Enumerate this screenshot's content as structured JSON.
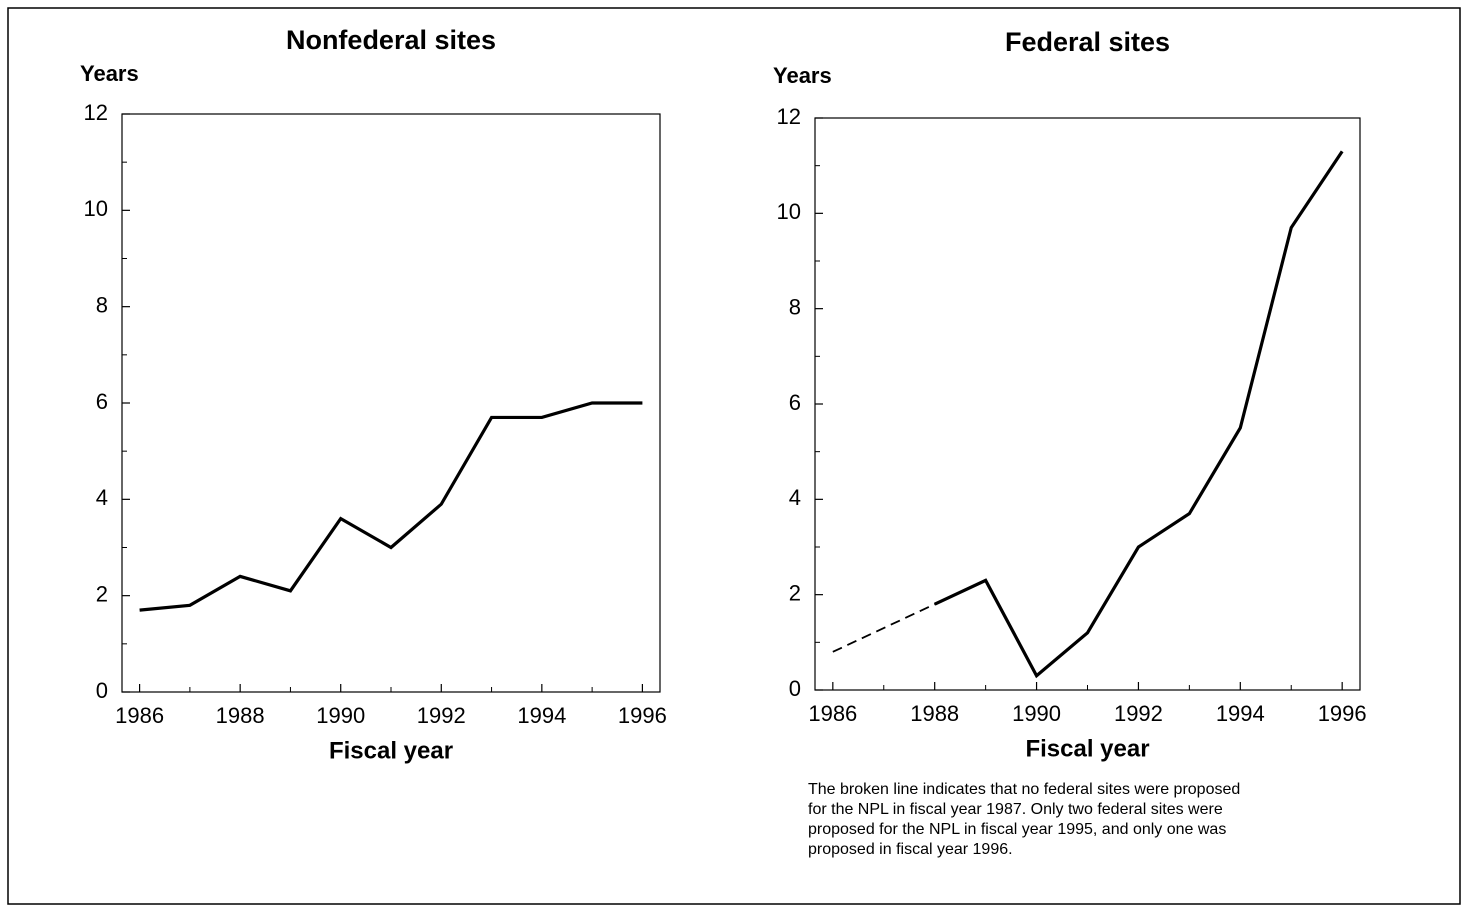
{
  "chart_data": [
    {
      "type": "line",
      "title": "Nonfederal sites",
      "y_label": "Years",
      "x_label": "Fiscal year",
      "x": [
        1986,
        1987,
        1988,
        1989,
        1990,
        1991,
        1992,
        1993,
        1994,
        1995,
        1996
      ],
      "series": [
        {
          "color": "#000000",
          "values": [
            1.7,
            1.8,
            2.4,
            2.1,
            3.6,
            3.0,
            3.9,
            5.7,
            5.7,
            6.0,
            6.0
          ]
        }
      ],
      "xlim": [
        1985.65,
        1996.35
      ],
      "xticks": [
        1986,
        1988,
        1990,
        1992,
        1994,
        1996
      ],
      "ylim": [
        0,
        12
      ],
      "yticks": [
        0,
        2,
        4,
        6,
        8,
        10,
        12
      ]
    },
    {
      "type": "line",
      "title": "Federal sites",
      "y_label": "Years",
      "x_label": "Fiscal year",
      "x": [
        1986,
        1987,
        1988,
        1989,
        1990,
        1991,
        1992,
        1993,
        1994,
        1995,
        1996
      ],
      "series": [
        {
          "color": "#000000",
          "values": [
            0.8,
            null,
            1.8,
            2.3,
            0.3,
            1.2,
            3.0,
            3.7,
            5.5,
            9.7,
            11.3
          ],
          "gap_style": "dashed"
        }
      ],
      "xlim": [
        1985.65,
        1996.35
      ],
      "xticks": [
        1986,
        1988,
        1990,
        1992,
        1994,
        1996
      ],
      "ylim": [
        0,
        12
      ],
      "yticks": [
        0,
        2,
        4,
        6,
        8,
        10,
        12
      ],
      "note": [
        "The broken line indicates that no federal sites were proposed",
        "for the NPL in fiscal year 1987.  Only two federal sites were",
        "proposed for the NPL in fiscal year 1995, and only one was",
        "proposed in fiscal year 1996."
      ]
    }
  ]
}
